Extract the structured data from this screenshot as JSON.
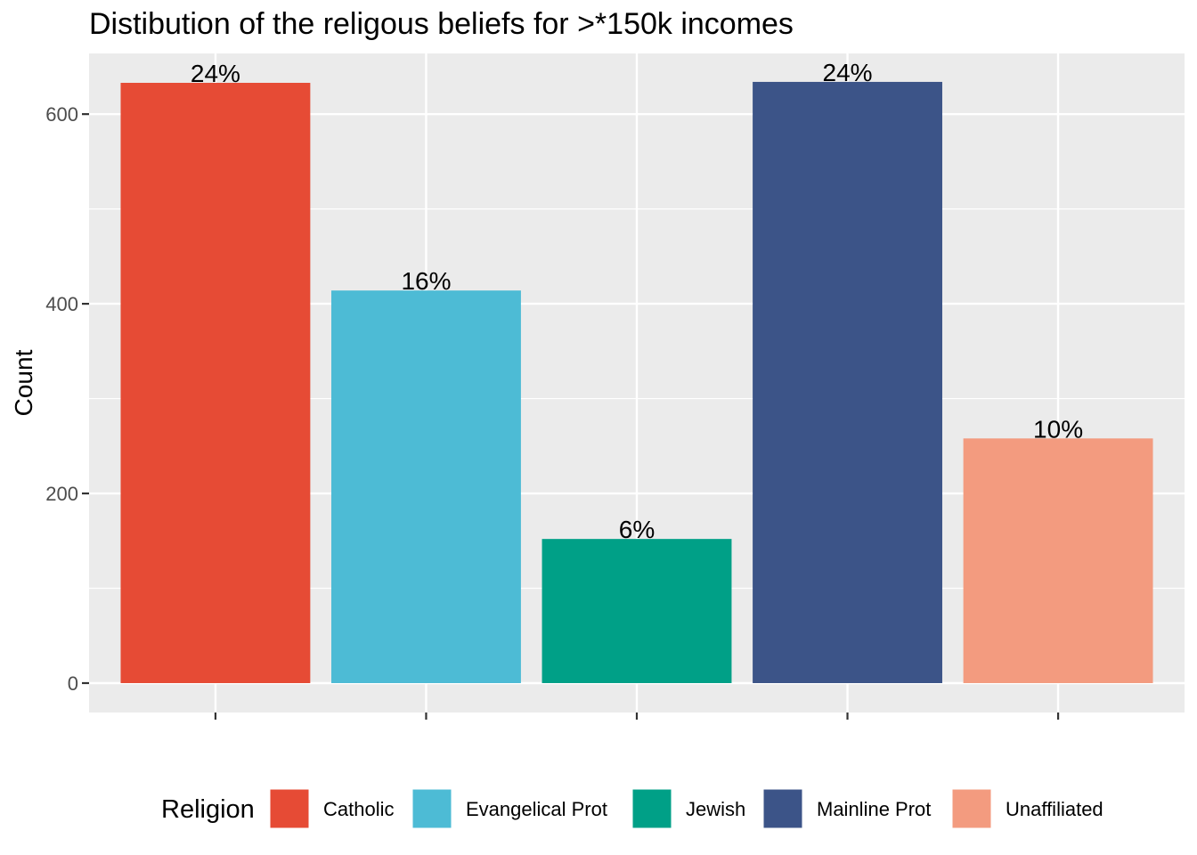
{
  "chart_data": {
    "type": "bar",
    "title": "Distibution of the religous beliefs for >*150k incomes",
    "xlabel": "",
    "ylabel": "Count",
    "ylim": [
      -31,
      664
    ],
    "yticks": [
      0,
      200,
      400,
      600
    ],
    "grid": true,
    "legend": {
      "title": "Religion",
      "placement": "bottom"
    },
    "categories": [
      "Catholic",
      "Evangelical Prot",
      "Jewish",
      "Mainline Prot",
      "Unaffiliated"
    ],
    "values": [
      633,
      414,
      152,
      634,
      258
    ],
    "data_labels": [
      "24%",
      "16%",
      "6%",
      "24%",
      "10%"
    ],
    "colors": [
      "#E64B35",
      "#4DBBD5",
      "#00A087",
      "#3C5488",
      "#F39B7F"
    ],
    "panel_background": "#EBEBEB",
    "gridline_color": "#FFFFFF"
  }
}
